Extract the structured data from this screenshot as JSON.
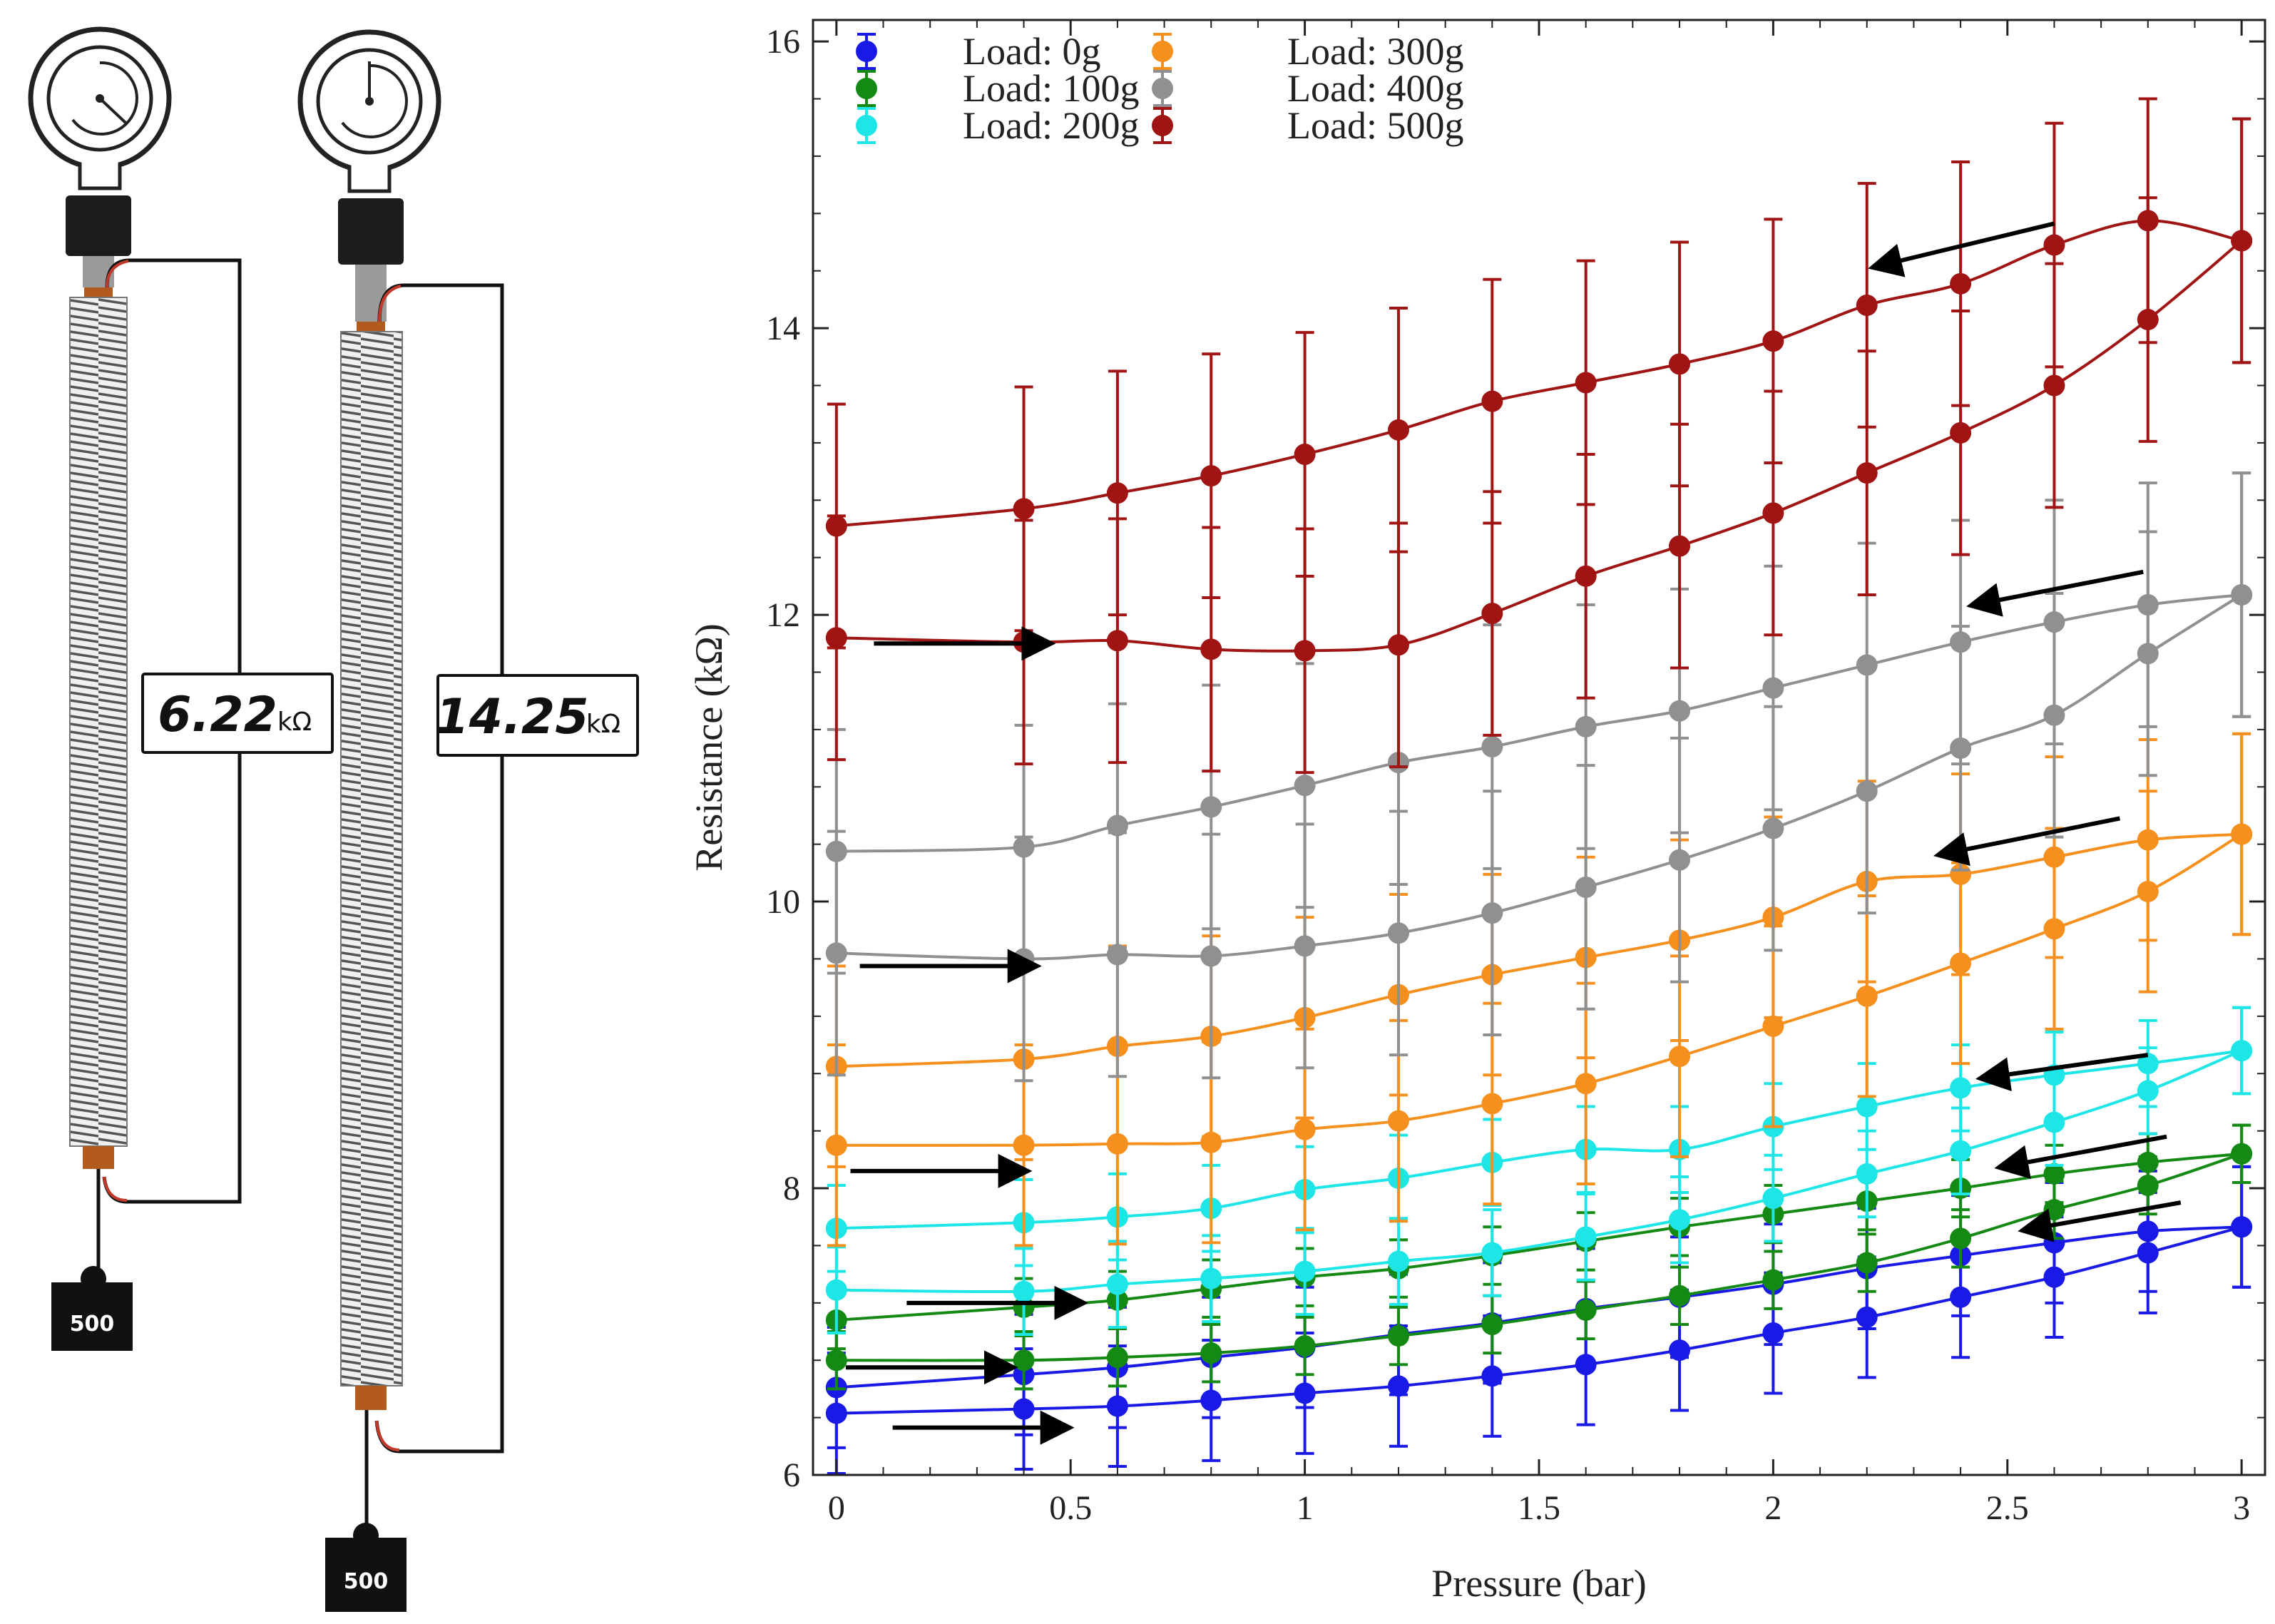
{
  "diagram": {
    "left_meter": {
      "value": "6.22",
      "unit": "kΩ"
    },
    "right_meter": {
      "value": "14.25",
      "unit": "kΩ"
    },
    "left_weight": "500",
    "right_weight": "500"
  },
  "chart_data": {
    "type": "line",
    "xlabel": "Pressure (bar)",
    "ylabel": "Resistance (kΩ)",
    "xlim": [
      -0.05,
      3.05
    ],
    "ylim": [
      6,
      16.15
    ],
    "xticks": [
      0,
      0.5,
      1,
      1.5,
      2,
      2.5,
      3
    ],
    "xtick_labels": [
      "0",
      "0.5",
      "1",
      "1.5",
      "2",
      "2.5",
      "3"
    ],
    "yticks": [
      6,
      8,
      10,
      12,
      14,
      16
    ],
    "ytick_labels": [
      "6",
      "8",
      "10",
      "12",
      "14",
      "16"
    ],
    "legend_position": "top-left",
    "x": [
      0,
      0.4,
      0.6,
      0.8,
      1.0,
      1.2,
      1.4,
      1.6,
      1.8,
      2.0,
      2.2,
      2.4,
      2.6,
      2.8,
      3.0
    ],
    "series": [
      {
        "name": "Load: 0g",
        "color": "#1a1ae6",
        "loading": [
          6.43,
          6.46,
          6.48,
          6.52,
          6.57,
          6.62,
          6.69,
          6.77,
          6.87,
          6.99,
          7.1,
          7.24,
          7.38,
          7.55,
          7.73
        ],
        "unloading": [
          6.61,
          6.7,
          6.75,
          6.82,
          6.89,
          6.98,
          7.06,
          7.16,
          7.24,
          7.33,
          7.44,
          7.53,
          7.62,
          7.7,
          7.73
        ],
        "error": 0.42
      },
      {
        "name": "Load: 100g",
        "color": "#148a14",
        "loading": [
          6.8,
          6.8,
          6.82,
          6.85,
          6.9,
          6.97,
          7.05,
          7.15,
          7.25,
          7.36,
          7.48,
          7.65,
          7.85,
          8.02,
          8.24
        ],
        "unloading": [
          7.08,
          7.17,
          7.22,
          7.3,
          7.38,
          7.44,
          7.53,
          7.63,
          7.73,
          7.82,
          7.91,
          8.0,
          8.1,
          8.18,
          8.24
        ],
        "error": 0.2
      },
      {
        "name": "Load: 200g",
        "color": "#1ee6e6",
        "loading": [
          7.29,
          7.28,
          7.33,
          7.37,
          7.42,
          7.49,
          7.55,
          7.66,
          7.78,
          7.93,
          8.1,
          8.26,
          8.46,
          8.68,
          8.96
        ],
        "unloading": [
          7.72,
          7.76,
          7.8,
          7.86,
          7.99,
          8.07,
          8.18,
          8.27,
          8.27,
          8.43,
          8.57,
          8.7,
          8.79,
          8.87,
          8.96
        ],
        "error": 0.3
      },
      {
        "name": "Load: 300g",
        "color": "#f5901e",
        "loading": [
          8.3,
          8.3,
          8.31,
          8.32,
          8.41,
          8.47,
          8.59,
          8.73,
          8.92,
          9.13,
          9.34,
          9.57,
          9.81,
          10.07,
          10.47
        ],
        "unloading": [
          8.85,
          8.9,
          8.99,
          9.06,
          9.19,
          9.35,
          9.49,
          9.61,
          9.73,
          9.89,
          10.14,
          10.19,
          10.31,
          10.43,
          10.47
        ],
        "error": 0.7
      },
      {
        "name": "Load: 400g",
        "color": "#909090",
        "loading": [
          9.64,
          9.6,
          9.63,
          9.62,
          9.69,
          9.78,
          9.92,
          10.1,
          10.29,
          10.51,
          10.77,
          11.07,
          11.3,
          11.73,
          12.14
        ],
        "unloading": [
          10.35,
          10.38,
          10.53,
          10.66,
          10.81,
          10.97,
          11.08,
          11.22,
          11.33,
          11.49,
          11.65,
          11.81,
          11.95,
          12.07,
          12.14
        ],
        "error": 0.85
      },
      {
        "name": "Load: 500g",
        "color": "#a01414",
        "loading": [
          11.84,
          11.81,
          11.82,
          11.76,
          11.75,
          11.79,
          12.01,
          12.27,
          12.48,
          12.71,
          12.99,
          13.27,
          13.6,
          14.06,
          14.61
        ],
        "unloading": [
          12.62,
          12.74,
          12.85,
          12.97,
          13.12,
          13.29,
          13.49,
          13.62,
          13.75,
          13.91,
          14.16,
          14.31,
          14.58,
          14.75,
          14.61
        ],
        "error": 0.85
      }
    ],
    "arrows": [
      {
        "from": [
          0.08,
          11.8
        ],
        "to": [
          0.45,
          11.8
        ]
      },
      {
        "from": [
          0.05,
          9.55
        ],
        "to": [
          0.42,
          9.55
        ]
      },
      {
        "from": [
          0.03,
          8.12
        ],
        "to": [
          0.4,
          8.12
        ]
      },
      {
        "from": [
          0.15,
          7.2
        ],
        "to": [
          0.52,
          7.2
        ]
      },
      {
        "from": [
          0.02,
          6.75
        ],
        "to": [
          0.37,
          6.75
        ]
      },
      {
        "from": [
          0.12,
          6.33
        ],
        "to": [
          0.49,
          6.33
        ]
      },
      {
        "from": [
          2.6,
          14.73
        ],
        "to": [
          2.22,
          14.43
        ]
      },
      {
        "from": [
          2.79,
          12.3
        ],
        "to": [
          2.43,
          12.07
        ]
      },
      {
        "from": [
          2.74,
          10.58
        ],
        "to": [
          2.36,
          10.33
        ]
      },
      {
        "from": [
          2.8,
          8.93
        ],
        "to": [
          2.45,
          8.77
        ]
      },
      {
        "from": [
          2.84,
          8.36
        ],
        "to": [
          2.49,
          8.15
        ]
      },
      {
        "from": [
          2.87,
          7.9
        ],
        "to": [
          2.54,
          7.71
        ]
      }
    ]
  }
}
